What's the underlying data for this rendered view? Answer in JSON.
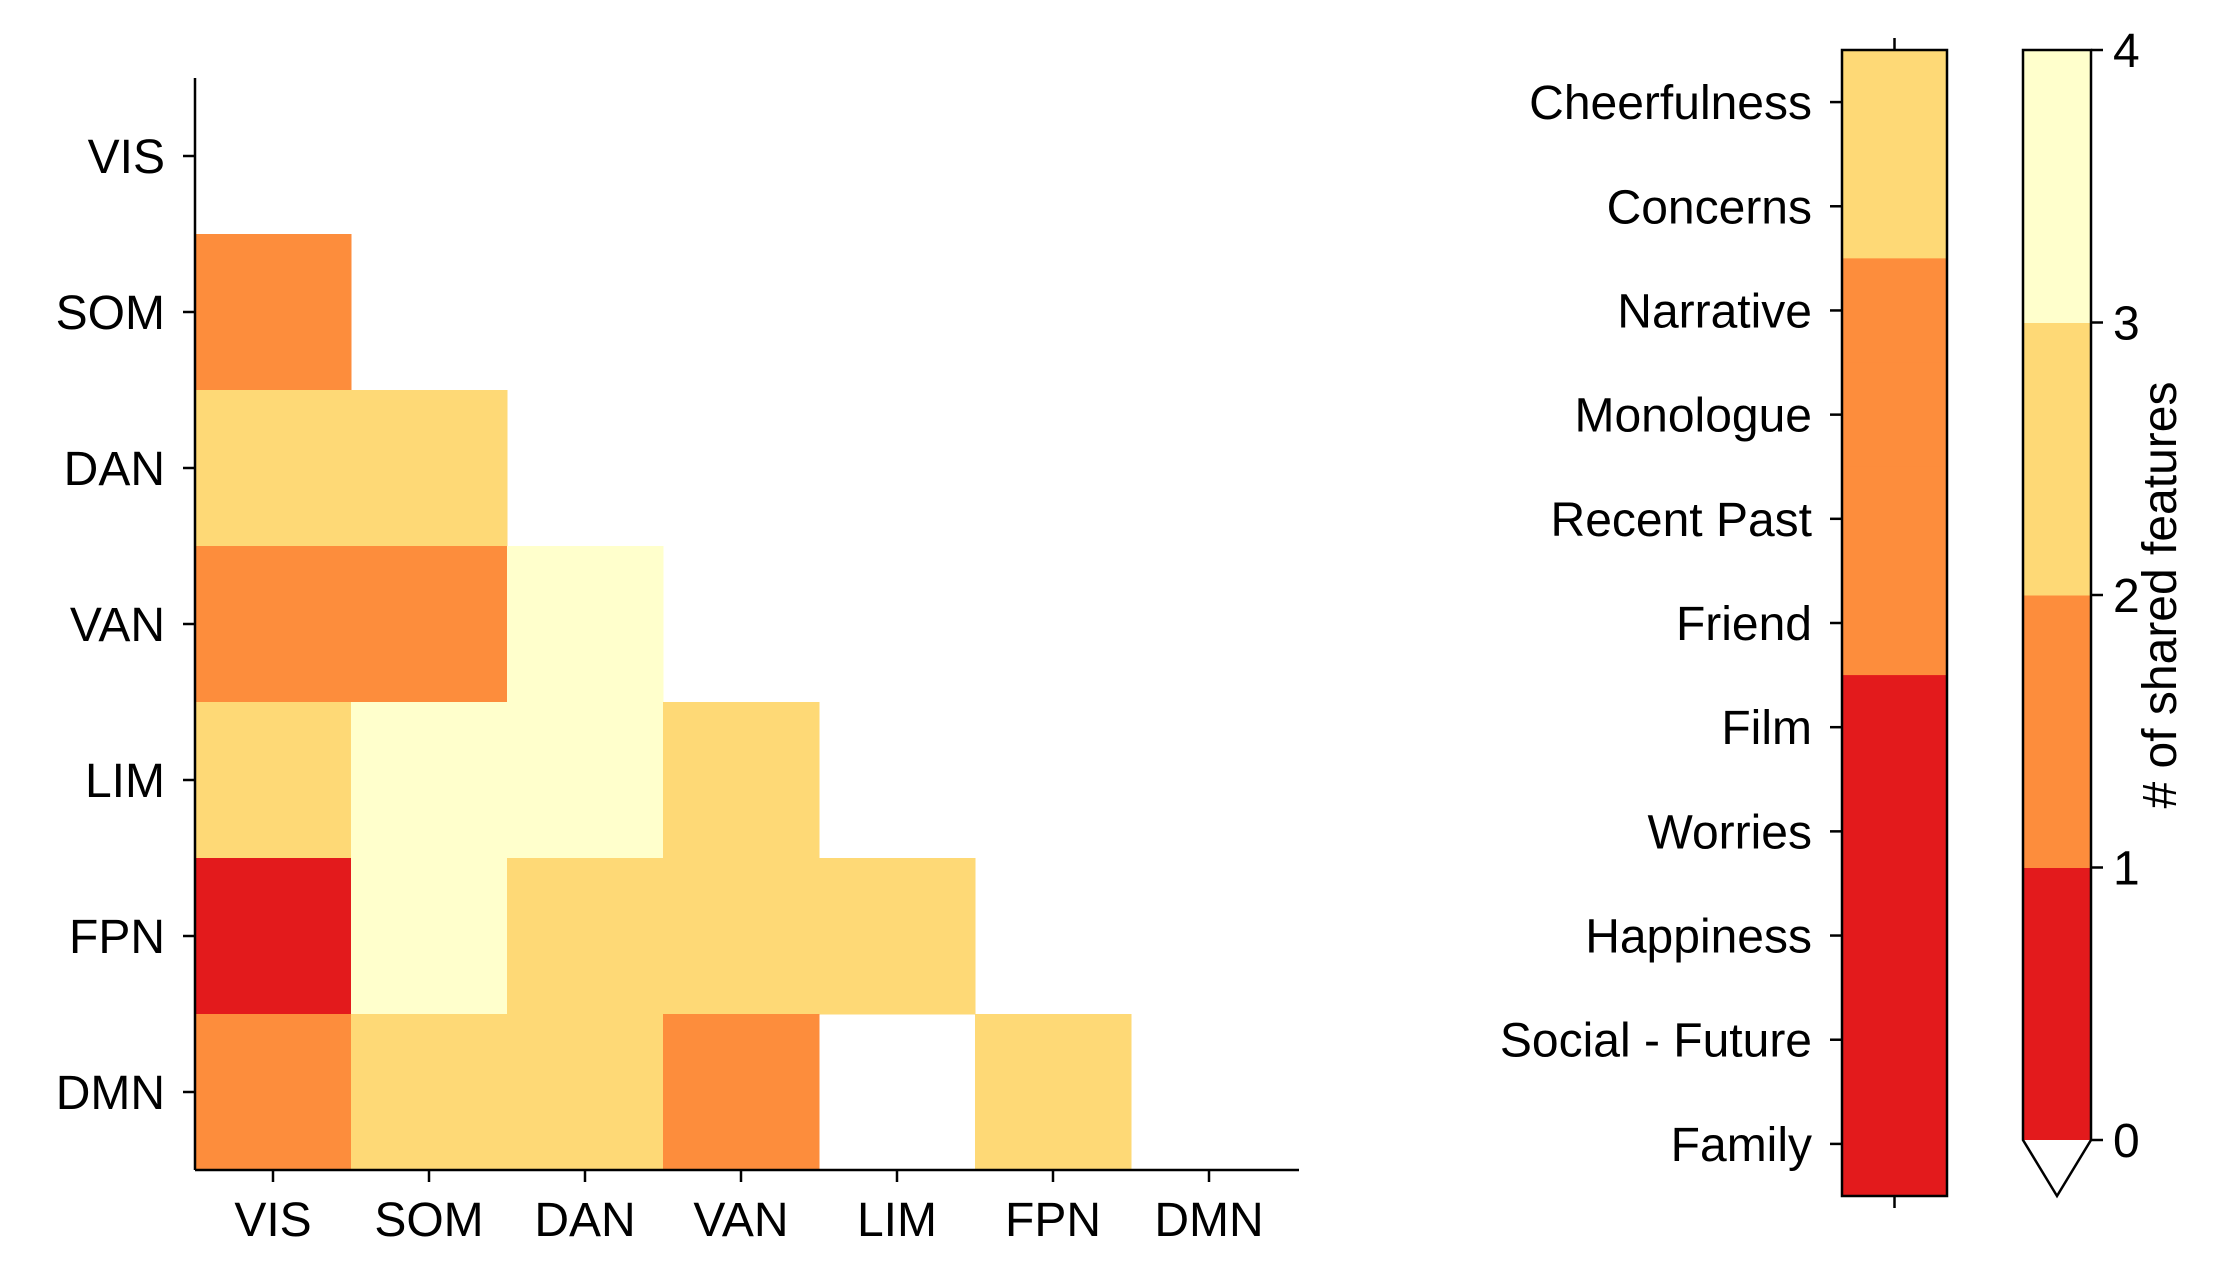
{
  "chart_data": [
    {
      "type": "heatmap",
      "title": "",
      "xlabel": "",
      "ylabel": "",
      "categories": [
        "VIS",
        "SOM",
        "DAN",
        "VAN",
        "LIM",
        "FPN",
        "DMN"
      ],
      "matrix_lower_triangle": [
        [],
        [
          1
        ],
        [
          2,
          2
        ],
        [
          1,
          1,
          3
        ],
        [
          2,
          3,
          3,
          2
        ],
        [
          0,
          3,
          2,
          2,
          2
        ],
        [
          1,
          2,
          2,
          1,
          null,
          2
        ]
      ]
    },
    {
      "type": "heatmap",
      "title": "",
      "ylabel": "",
      "categories": [
        "Cheerfulness",
        "Concerns",
        "Narrative",
        "Monologue",
        "Recent Past",
        "Friend",
        "Film",
        "Worries",
        "Happiness",
        "Social - Future",
        "Family"
      ],
      "values": [
        2,
        2,
        1,
        1,
        1,
        1,
        0,
        0,
        0,
        0,
        0
      ]
    }
  ],
  "colorbar": {
    "label": "# of shared features",
    "ticks": [
      "0",
      "1",
      "2",
      "3",
      "4"
    ],
    "extend": "min",
    "colors": [
      "#e31a1c",
      "#fd8d3c",
      "#fed976",
      "#ffffcc"
    ],
    "under_color": "#ffffff"
  }
}
